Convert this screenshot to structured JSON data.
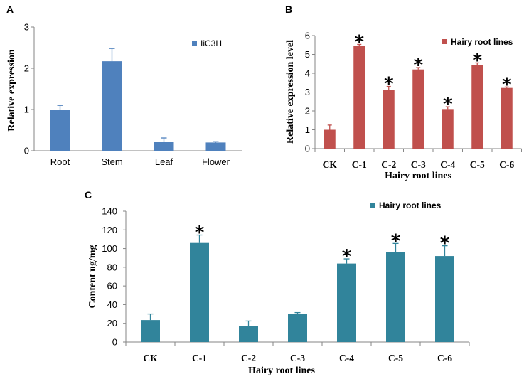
{
  "chart_data": [
    {
      "panel": "A",
      "type": "bar",
      "categories": [
        "Root",
        "Stem",
        "Leaf",
        "Flower"
      ],
      "series": [
        {
          "name": "IiC3H",
          "values": [
            0.99,
            2.17,
            0.22,
            0.2
          ],
          "errors": [
            0.11,
            0.31,
            0.09,
            0.02
          ],
          "color": "#4F81BD"
        }
      ],
      "ylabel": "Relative expression",
      "ylim": [
        0,
        3
      ],
      "yticks": [
        0,
        1,
        2,
        3
      ],
      "legend": "top-right"
    },
    {
      "panel": "B",
      "type": "bar",
      "categories": [
        "CK",
        "C-1",
        "C-2",
        "C-3",
        "C-4",
        "C-5",
        "C-6"
      ],
      "series": [
        {
          "name": "Hairy root lines",
          "values": [
            1.0,
            5.45,
            3.1,
            4.2,
            2.1,
            4.45,
            3.22
          ],
          "errors": [
            0.25,
            0.08,
            0.2,
            0.1,
            0.12,
            0.1,
            0.05
          ],
          "color": "#C0504D"
        }
      ],
      "markers": [
        "",
        "*",
        "*",
        "*",
        "*",
        "*",
        "*"
      ],
      "xlabel": "Hairy root lines",
      "ylabel": "Relative expression level",
      "ylim": [
        0,
        6
      ],
      "yticks": [
        0,
        1,
        2,
        3,
        4,
        5,
        6
      ],
      "legend": "top-right"
    },
    {
      "panel": "C",
      "type": "bar",
      "categories": [
        "CK",
        "C-1",
        "C-2",
        "C-3",
        "C-4",
        "C-5",
        "C-6"
      ],
      "series": [
        {
          "name": "Hairy root lines",
          "values": [
            23.5,
            106,
            17,
            30,
            84,
            96.5,
            92
          ],
          "errors": [
            6.5,
            8.5,
            5.5,
            1.5,
            5,
            9,
            11
          ],
          "color": "#31849B"
        }
      ],
      "markers": [
        "",
        "*",
        "",
        "",
        "*",
        "*",
        "*"
      ],
      "xlabel": "Hairy root lines",
      "ylabel": "Content ug/mg",
      "ylim": [
        0,
        140
      ],
      "yticks": [
        0,
        20,
        40,
        60,
        80,
        100,
        120,
        140
      ],
      "legend": "top-right"
    }
  ]
}
